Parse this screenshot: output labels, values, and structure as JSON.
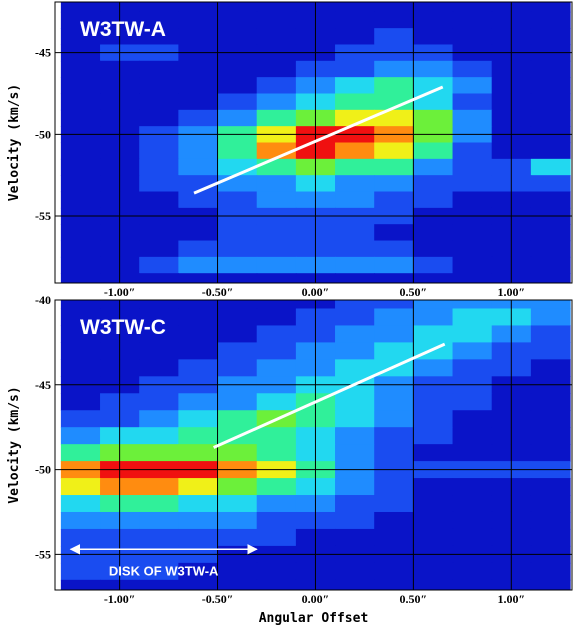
{
  "chart_data": [
    {
      "type": "heatmap",
      "title": "W3TW-A",
      "ylabel": "Velocity (km/s)",
      "xlim": [
        -1.33,
        1.31
      ],
      "ylim": [
        -41.9,
        -59.1
      ],
      "xticks": [
        {
          "value": -1,
          "label": "-1.00″"
        },
        {
          "value": -0.5,
          "label": "-0.50″"
        },
        {
          "value": 0,
          "label": "0.00″"
        },
        {
          "value": 0.5,
          "label": "0.50″"
        },
        {
          "value": 1,
          "label": "1.00″"
        }
      ],
      "yticks": [
        -45,
        -50,
        -55
      ],
      "grid": true,
      "colormap": [
        "#00007a",
        "#0a14c8",
        "#1a4cf0",
        "#1f8cff",
        "#22d8f0",
        "#30f09a",
        "#6cf03a",
        "#f0f018",
        "#ff8c10",
        "#f01010"
      ],
      "x": [
        -1.2,
        -1.0,
        -0.8,
        -0.6,
        -0.4,
        -0.2,
        0,
        0.2,
        0.4,
        0.6,
        0.8,
        1.0,
        1.2
      ],
      "y": [
        -42,
        -43,
        -44,
        -45,
        -46,
        -47,
        -48,
        -49,
        -50,
        -51,
        -52,
        -53,
        -54,
        -55,
        -56,
        -57,
        -58,
        -59
      ],
      "z": [
        [
          1,
          1,
          1,
          1,
          1,
          1,
          1,
          1,
          1,
          1,
          1,
          1,
          1
        ],
        [
          1,
          1,
          1,
          1,
          1,
          1,
          1,
          1,
          1,
          1,
          1,
          1,
          1
        ],
        [
          1,
          1,
          1,
          1,
          1,
          1,
          1,
          1,
          2,
          1,
          1,
          1,
          1
        ],
        [
          1,
          2,
          2,
          1,
          1,
          1,
          1,
          2,
          2,
          2,
          1,
          1,
          1
        ],
        [
          1,
          1,
          1,
          1,
          1,
          1,
          2,
          2,
          3,
          3,
          2,
          1,
          1
        ],
        [
          1,
          1,
          1,
          1,
          1,
          2,
          3,
          4,
          5,
          4,
          3,
          1,
          1
        ],
        [
          1,
          1,
          1,
          1,
          2,
          3,
          4,
          5,
          5,
          4,
          2,
          1,
          1
        ],
        [
          1,
          1,
          1,
          2,
          3,
          5,
          6,
          7,
          7,
          6,
          3,
          1,
          1
        ],
        [
          1,
          1,
          2,
          3,
          5,
          7,
          9,
          9,
          8,
          6,
          3,
          1,
          1
        ],
        [
          1,
          1,
          2,
          3,
          5,
          8,
          9,
          8,
          7,
          5,
          2,
          1,
          1
        ],
        [
          1,
          1,
          2,
          3,
          4,
          5,
          6,
          5,
          5,
          3,
          2,
          2,
          4
        ],
        [
          1,
          1,
          2,
          2,
          3,
          3,
          4,
          3,
          3,
          2,
          2,
          2,
          2
        ],
        [
          1,
          1,
          1,
          2,
          2,
          3,
          3,
          3,
          2,
          2,
          1,
          1,
          1
        ],
        [
          1,
          1,
          1,
          1,
          2,
          2,
          2,
          2,
          2,
          1,
          1,
          1,
          1
        ],
        [
          1,
          1,
          1,
          1,
          2,
          2,
          2,
          2,
          1,
          1,
          1,
          1,
          1
        ],
        [
          1,
          1,
          1,
          2,
          2,
          2,
          2,
          2,
          2,
          1,
          1,
          1,
          1
        ],
        [
          1,
          1,
          2,
          3,
          3,
          3,
          3,
          3,
          3,
          2,
          1,
          1,
          1
        ],
        [
          1,
          1,
          1,
          1,
          1,
          1,
          1,
          1,
          1,
          1,
          1,
          1,
          1
        ]
      ],
      "fit_line": {
        "x": [
          -0.62,
          0.65
        ],
        "y": [
          -53.6,
          -47.1
        ],
        "color": "#ffffff"
      }
    },
    {
      "type": "heatmap",
      "title": "W3TW-C",
      "ylabel": "Velocity (km/s)",
      "xlabel": "Angular Offset",
      "xlim": [
        -1.33,
        1.31
      ],
      "ylim": [
        -40,
        -57.1
      ],
      "xticks": [
        {
          "value": -1,
          "label": "-1.00″"
        },
        {
          "value": -0.5,
          "label": "-0.50″"
        },
        {
          "value": 0,
          "label": "0.00″"
        },
        {
          "value": 0.5,
          "label": "0.50″"
        },
        {
          "value": 1,
          "label": "1.00″"
        }
      ],
      "yticks": [
        -40,
        -45,
        -50,
        -55
      ],
      "grid": true,
      "colormap": [
        "#00007a",
        "#0a14c8",
        "#1a4cf0",
        "#1f8cff",
        "#22d8f0",
        "#30f09a",
        "#6cf03a",
        "#f0f018",
        "#ff8c10",
        "#f01010"
      ],
      "x": [
        -1.2,
        -1.0,
        -0.8,
        -0.6,
        -0.4,
        -0.2,
        0,
        0.2,
        0.4,
        0.6,
        0.8,
        1.0,
        1.2
      ],
      "y": [
        -40,
        -41,
        -42,
        -43,
        -44,
        -45,
        -46,
        -47,
        -48,
        -49,
        -50,
        -51,
        -52,
        -53,
        -54,
        -55,
        -56,
        -57
      ],
      "z": [
        [
          1,
          1,
          1,
          1,
          1,
          1,
          1,
          2,
          2,
          3,
          3,
          3,
          3
        ],
        [
          1,
          1,
          1,
          1,
          1,
          1,
          2,
          2,
          3,
          3,
          4,
          4,
          3
        ],
        [
          1,
          1,
          1,
          1,
          1,
          2,
          2,
          3,
          3,
          4,
          4,
          3,
          2
        ],
        [
          1,
          1,
          1,
          1,
          2,
          2,
          3,
          3,
          4,
          4,
          3,
          2,
          2
        ],
        [
          1,
          1,
          1,
          2,
          2,
          3,
          3,
          4,
          4,
          3,
          2,
          2,
          1
        ],
        [
          1,
          1,
          2,
          2,
          3,
          3,
          4,
          4,
          3,
          2,
          2,
          1,
          1
        ],
        [
          1,
          2,
          2,
          3,
          3,
          4,
          5,
          4,
          3,
          2,
          2,
          1,
          1
        ],
        [
          2,
          2,
          3,
          4,
          5,
          6,
          5,
          4,
          3,
          2,
          1,
          1,
          1
        ],
        [
          3,
          4,
          4,
          5,
          5,
          5,
          4,
          3,
          2,
          2,
          1,
          1,
          1
        ],
        [
          5,
          6,
          6,
          6,
          6,
          5,
          4,
          3,
          2,
          1,
          1,
          1,
          1
        ],
        [
          8,
          9,
          9,
          9,
          8,
          7,
          5,
          3,
          2,
          2,
          2,
          2,
          2
        ],
        [
          7,
          8,
          8,
          7,
          6,
          5,
          4,
          3,
          2,
          1,
          1,
          1,
          1
        ],
        [
          4,
          5,
          5,
          4,
          4,
          3,
          3,
          2,
          2,
          1,
          1,
          1,
          1
        ],
        [
          3,
          3,
          3,
          3,
          3,
          2,
          2,
          2,
          1,
          1,
          1,
          1,
          1
        ],
        [
          2,
          2,
          2,
          2,
          2,
          2,
          1,
          1,
          1,
          1,
          1,
          1,
          1
        ],
        [
          2,
          2,
          2,
          2,
          1,
          1,
          1,
          1,
          1,
          1,
          1,
          1,
          1
        ],
        [
          2,
          2,
          2,
          1,
          1,
          1,
          1,
          1,
          1,
          1,
          1,
          1,
          1
        ],
        [
          1,
          1,
          1,
          1,
          1,
          1,
          1,
          1,
          1,
          1,
          1,
          1,
          1
        ]
      ],
      "fit_line": {
        "x": [
          -0.52,
          0.66
        ],
        "y": [
          -48.7,
          -42.6
        ],
        "color": "#ffffff"
      },
      "annotation": {
        "text": "DISK OF W3TW-A",
        "arrow": {
          "x": [
            -1.25,
            -0.3
          ],
          "y": -54.7
        }
      }
    }
  ]
}
